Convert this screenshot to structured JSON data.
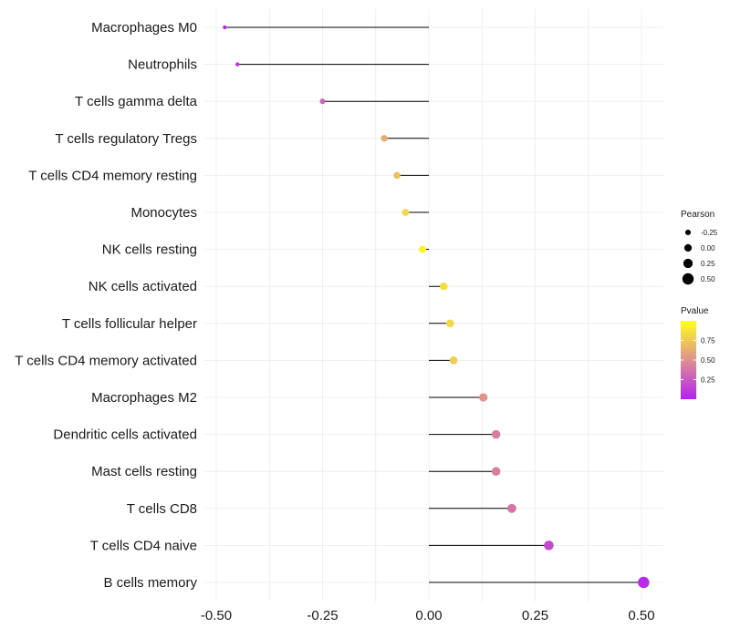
{
  "chart_data": {
    "type": "lollipop",
    "categories": [
      "Macrophages M0",
      "Neutrophils",
      "T cells gamma delta",
      "T cells regulatory  Tregs ",
      "T cells CD4 memory resting",
      "Monocytes",
      "NK cells resting",
      "NK cells activated",
      "T cells follicular helper",
      "T cells CD4 memory activated",
      "Macrophages M2",
      "Dendritic cells activated",
      "Mast cells resting",
      "T cells CD8",
      "T cells CD4 naive",
      "B cells memory"
    ],
    "values": [
      -0.48,
      -0.45,
      -0.25,
      -0.105,
      -0.075,
      -0.055,
      -0.015,
      0.035,
      0.05,
      0.058,
      0.128,
      0.158,
      0.158,
      0.195,
      0.282,
      0.505
    ],
    "pvalues": [
      0.02,
      0.08,
      0.32,
      0.62,
      0.72,
      0.82,
      0.95,
      0.85,
      0.82,
      0.78,
      0.52,
      0.42,
      0.42,
      0.38,
      0.18,
      0.05
    ],
    "xlim": [
      -0.5,
      0.5
    ],
    "xticks": [
      "-0.50",
      "-0.25",
      "0.00",
      "0.25",
      "0.50"
    ],
    "xtick_values": [
      -0.5,
      -0.25,
      0,
      0.25,
      0.5
    ],
    "legend_size": {
      "title": "Pearson",
      "labels": [
        "-0.25",
        "0.00",
        "0.25",
        "0.50"
      ],
      "values": [
        -0.25,
        0,
        0.25,
        0.5
      ]
    },
    "legend_color": {
      "title": "Pvalue",
      "labels": [
        "0.75",
        "0.50",
        "0.25"
      ],
      "values": [
        0.75,
        0.5,
        0.25
      ],
      "low_color": "#b321f3",
      "high_color": "#ffff1c"
    },
    "stem_color": "#000000",
    "grid": true
  }
}
